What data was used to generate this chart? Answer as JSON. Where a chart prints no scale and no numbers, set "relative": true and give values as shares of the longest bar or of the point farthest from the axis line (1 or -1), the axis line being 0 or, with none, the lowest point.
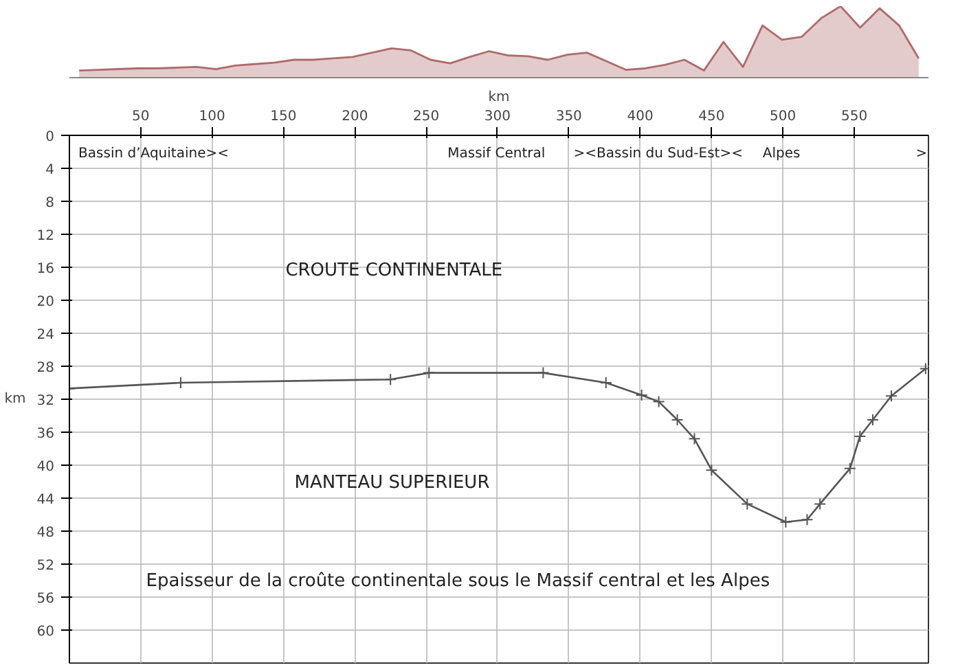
{
  "chart_data": [
    {
      "type": "area",
      "relative": true,
      "color": "#b06a6a",
      "tick_labels": false,
      "categories": [
        null,
        null,
        null,
        null,
        null,
        null,
        null,
        null,
        null,
        null,
        null,
        null,
        null,
        null,
        null,
        null,
        null,
        null,
        null,
        null,
        null,
        null,
        null,
        null,
        null,
        null,
        null,
        null,
        null,
        null,
        null,
        null,
        null,
        null,
        null,
        null,
        null,
        null,
        null,
        null,
        null,
        null,
        null,
        null
      ],
      "values": [
        0.1,
        0.11,
        0.12,
        0.13,
        0.13,
        0.14,
        0.15,
        0.12,
        0.17,
        0.19,
        0.21,
        0.25,
        0.25,
        0.27,
        0.29,
        0.35,
        0.41,
        0.38,
        0.25,
        0.2,
        0.29,
        0.37,
        0.31,
        0.3,
        0.25,
        0.32,
        0.35,
        0.23,
        0.11,
        0.13,
        0.18,
        0.25,
        0.1,
        0.5,
        0.15,
        0.73,
        0.53,
        0.57,
        0.83,
        1,
        0.7,
        0.97,
        0.73,
        0.27
      ]
    },
    {
      "type": "line",
      "title": "Epaisseur de la croûte continentale sous le Massif central et les Alpes",
      "xlabel": "km",
      "ylabel": "km",
      "color": "#555555",
      "marker": "cross",
      "grid": true,
      "x": [
        0,
        78,
        225,
        252,
        332,
        376,
        401,
        413,
        426,
        438,
        450,
        475,
        502,
        517,
        526,
        547,
        554,
        563,
        576,
        600
      ],
      "values": [
        30.7,
        30.0,
        29.6,
        28.8,
        28.8,
        30.0,
        31.5,
        32.3,
        34.5,
        36.8,
        40.6,
        44.7,
        46.9,
        46.6,
        44.7,
        40.4,
        36.5,
        34.5,
        31.6,
        28.3
      ],
      "xlim": [
        0,
        602
      ],
      "ylim": [
        64,
        0
      ],
      "xticks": [
        50,
        100,
        150,
        200,
        250,
        300,
        350,
        400,
        450,
        500,
        550
      ],
      "yticks": [
        0,
        4,
        8,
        12,
        16,
        20,
        24,
        28,
        32,
        36,
        40,
        44,
        48,
        52,
        56,
        60
      ],
      "annotations": [
        "Bassin d’Aquitaine><",
        "Massif Central",
        "><Bassin du Sud-Est><",
        "Alpes",
        ">",
        "CROUTE CONTINENTALE",
        "MANTEAU SUPERIEUR"
      ]
    }
  ]
}
